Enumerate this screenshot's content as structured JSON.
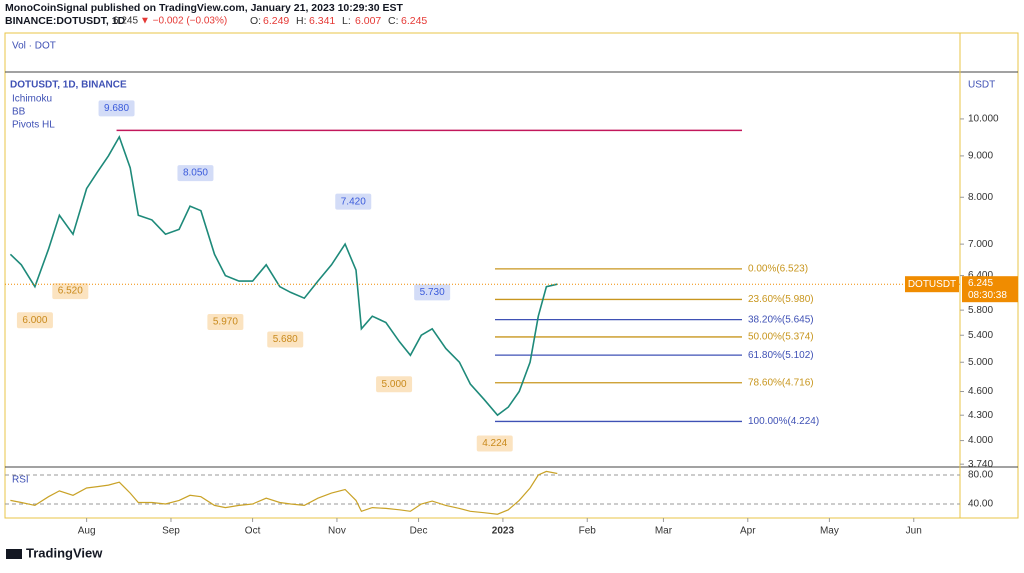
{
  "header": {
    "publisher_line": "MonoCoinSignal published on TradingView.com, January 21, 2023 10:29:30 EST",
    "symbol": "BINANCE:DOTUSDT, 1D",
    "last": 6.245,
    "change": "▼ −0.002 (−0.03%)",
    "ohlc": [
      {
        "key": "O:",
        "value": 6.249
      },
      {
        "key": "H:",
        "value": 6.341
      },
      {
        "key": "L:",
        "value": 6.007
      },
      {
        "key": "C:",
        "value": 6.245
      }
    ]
  },
  "chart_data": {
    "type": "line",
    "log_scale": true,
    "y_axis_label": "USDT",
    "volume_label": "Vol · DOT",
    "indicators": [
      "Ichimoku",
      "BB",
      "Pivots HL"
    ],
    "x": [
      "2022-07-04",
      "2022-07-08",
      "2022-07-13",
      "2022-07-18",
      "2022-07-22",
      "2022-07-27",
      "2022-08-01",
      "2022-08-05",
      "2022-08-09",
      "2022-08-13",
      "2022-08-17",
      "2022-08-20",
      "2022-08-25",
      "2022-08-30",
      "2022-09-04",
      "2022-09-08",
      "2022-09-12",
      "2022-09-17",
      "2022-09-21",
      "2022-09-26",
      "2022-10-01",
      "2022-10-06",
      "2022-10-11",
      "2022-10-15",
      "2022-10-20",
      "2022-10-25",
      "2022-10-30",
      "2022-11-04",
      "2022-11-08",
      "2022-11-10",
      "2022-11-14",
      "2022-11-19",
      "2022-11-24",
      "2022-11-28",
      "2022-12-02",
      "2022-12-06",
      "2022-12-11",
      "2022-12-16",
      "2022-12-20",
      "2022-12-25",
      "2022-12-30",
      "2023-01-03",
      "2023-01-07",
      "2023-01-11",
      "2023-01-14",
      "2023-01-17",
      "2023-01-21"
    ],
    "series": [
      {
        "name": "DOTUSDT, 1D, BINANCE",
        "color": "#1e8a7a",
        "values": [
          6.8,
          6.6,
          6.2,
          6.9,
          7.6,
          7.2,
          8.2,
          8.6,
          9.0,
          9.5,
          8.7,
          7.6,
          7.5,
          7.2,
          7.3,
          7.8,
          7.7,
          6.8,
          6.4,
          6.3,
          6.3,
          6.6,
          6.2,
          6.1,
          6.0,
          6.3,
          6.6,
          7.0,
          6.5,
          5.5,
          5.7,
          5.6,
          5.3,
          5.1,
          5.4,
          5.5,
          5.2,
          5.0,
          4.7,
          4.5,
          4.3,
          4.4,
          4.6,
          5.0,
          5.7,
          6.2,
          6.245
        ]
      }
    ],
    "xlim": [
      "2022-07-02",
      "2023-06-18"
    ],
    "xticks": [
      {
        "value": "2022-08-01",
        "label": "Aug"
      },
      {
        "value": "2022-09-01",
        "label": "Sep"
      },
      {
        "value": "2022-10-01",
        "label": "Oct"
      },
      {
        "value": "2022-11-01",
        "label": "Nov"
      },
      {
        "value": "2022-12-01",
        "label": "Dec"
      },
      {
        "value": "2023-01-01",
        "label": "2023"
      },
      {
        "value": "2023-02-01",
        "label": "Feb"
      },
      {
        "value": "2023-03-01",
        "label": "Mar"
      },
      {
        "value": "2023-04-01",
        "label": "Apr"
      },
      {
        "value": "2023-05-01",
        "label": "May"
      },
      {
        "value": "2023-06-01",
        "label": "Jun"
      }
    ],
    "ylim": [
      3.71,
      11.43
    ],
    "yticks": [
      {
        "value": 10,
        "label": "10.000"
      },
      {
        "value": 9,
        "label": "9.000"
      },
      {
        "value": 8,
        "label": "8.000"
      },
      {
        "value": 7,
        "label": "7.000"
      },
      {
        "value": 6.4,
        "label": "6.400"
      },
      {
        "value": 5.8,
        "label": "5.800"
      },
      {
        "value": 5.4,
        "label": "5.400"
      },
      {
        "value": 5,
        "label": "5.000"
      },
      {
        "value": 4.6,
        "label": "4.600"
      },
      {
        "value": 4.3,
        "label": "4.300"
      },
      {
        "value": 4,
        "label": "4.000"
      },
      {
        "value": 3.74,
        "label": "3.740"
      }
    ],
    "pivot_highs": {
      "x": [
        "2022-08-12",
        "2022-09-10",
        "2022-11-07",
        "2022-12-06"
      ],
      "values": [
        9.68,
        8.05,
        7.42,
        5.73
      ],
      "value_labels": [
        "9.680",
        "8.050",
        "7.420",
        "5.730"
      ],
      "color": "#3b5bdb"
    },
    "pivot_lows": {
      "x": [
        "2022-07-13",
        "2022-07-26",
        "2022-09-21",
        "2022-10-13",
        "2022-11-22",
        "2022-12-29"
      ],
      "values": [
        6.0,
        6.52,
        5.97,
        5.68,
        5.0,
        4.224
      ],
      "value_labels": [
        "6.000",
        "6.520",
        "5.970",
        "5.680",
        "5.000",
        "4.224"
      ],
      "color": "#c98a1c"
    },
    "fib_levels": [
      {
        "label": "0.00%(6.523)",
        "value": 6.523,
        "color": "#c8961e"
      },
      {
        "label": "23.60%(5.980)",
        "value": 5.98,
        "color": "#c8961e"
      },
      {
        "label": "38.20%(5.645)",
        "value": 5.645,
        "color": "#3f51b5"
      },
      {
        "label": "50.00%(5.374)",
        "value": 5.374,
        "color": "#c8961e"
      },
      {
        "label": "61.80%(5.102)",
        "value": 5.102,
        "color": "#3f51b5"
      },
      {
        "label": "78.60%(4.716)",
        "value": 4.716,
        "color": "#c8961e"
      },
      {
        "label": "100.00%(4.224)",
        "value": 4.224,
        "color": "#3f51b5"
      }
    ],
    "price_tag": {
      "symbol": "DOTUSDT",
      "value": 6.245,
      "countdown": "08:30:38",
      "color": "#f08c00"
    },
    "rsi": {
      "name": "RSI",
      "color": "#c9a227",
      "values": [
        45,
        42,
        38,
        50,
        58,
        52,
        62,
        64,
        66,
        70,
        55,
        42,
        42,
        40,
        45,
        52,
        50,
        38,
        35,
        38,
        40,
        48,
        42,
        40,
        38,
        48,
        55,
        60,
        45,
        30,
        35,
        34,
        32,
        30,
        40,
        44,
        38,
        34,
        30,
        28,
        26,
        32,
        45,
        62,
        80,
        85,
        82
      ],
      "ylim": [
        20.7,
        91
      ],
      "yticks": [
        {
          "value": 80,
          "label": "80.00"
        },
        {
          "value": 40,
          "label": "40.00"
        }
      ]
    }
  },
  "footer": {
    "brand": "TradingView"
  }
}
